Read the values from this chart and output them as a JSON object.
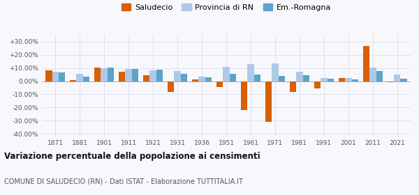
{
  "years": [
    1871,
    1881,
    1901,
    1911,
    1921,
    1931,
    1936,
    1951,
    1961,
    1971,
    1981,
    1991,
    2001,
    2011,
    2021
  ],
  "saludecio": [
    8.5,
    0.8,
    10.5,
    7.0,
    4.5,
    -8.0,
    1.5,
    -4.5,
    -22.0,
    -31.0,
    -8.0,
    -5.5,
    2.5,
    26.5,
    -0.5
  ],
  "provincia_rn": [
    7.0,
    5.5,
    10.0,
    9.5,
    8.5,
    7.5,
    3.5,
    11.0,
    13.0,
    13.5,
    7.0,
    2.5,
    2.5,
    10.5,
    5.0
  ],
  "emilia_romagna": [
    6.5,
    3.5,
    10.5,
    9.5,
    9.0,
    5.5,
    3.0,
    5.5,
    5.0,
    4.0,
    4.5,
    2.0,
    1.5,
    7.5,
    2.0
  ],
  "color_saludecio": "#d95f02",
  "color_provincia": "#aec9e8",
  "color_emilia": "#5ba3c9",
  "ylim": [
    -42,
    35
  ],
  "yticks": [
    -40,
    -30,
    -20,
    -10,
    0,
    10,
    20,
    30
  ],
  "ytick_labels": [
    "-40.00%",
    "-30.00%",
    "-20.00%",
    "-10.00%",
    "0.00%",
    "+10.00%",
    "+20.00%",
    "+30.00%"
  ],
  "title": "Variazione percentuale della popolazione ai censimenti",
  "subtitle": "COMUNE DI SALUDECIO (RN) - Dati ISTAT - Elaborazione TUTTITALIA.IT",
  "legend_labels": [
    "Saludecio",
    "Provincia di RN",
    "Em.-Romagna"
  ],
  "bar_width": 0.27,
  "grid_color": "#dde0ee",
  "background_color": "#f8f8fc"
}
